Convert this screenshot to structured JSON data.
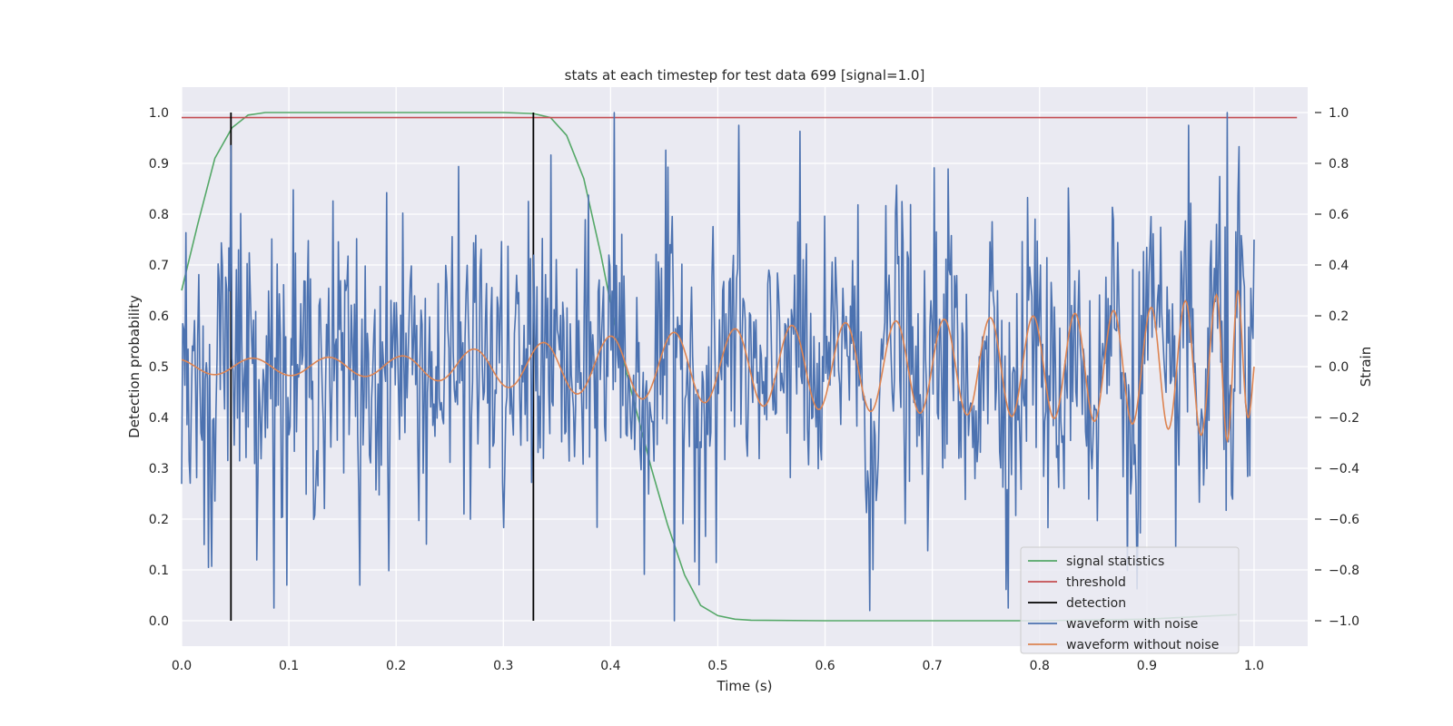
{
  "chart_data": {
    "type": "line",
    "title": "stats at each timestep for test data 699 [signal=1.0]",
    "xlabel": "Time (s)",
    "ylabel": "Detection probability",
    "ylabel_right": "Strain",
    "xlim": [
      0.0,
      1.05
    ],
    "ylim": [
      -0.05,
      1.05
    ],
    "ylim_right": [
      -1.1,
      1.1
    ],
    "xticks": [
      0.0,
      0.1,
      0.2,
      0.3,
      0.4,
      0.5,
      0.6,
      0.7,
      0.8,
      0.9,
      1.0
    ],
    "xtick_labels": [
      "0.0",
      "0.1",
      "0.2",
      "0.3",
      "0.4",
      "0.5",
      "0.6",
      "0.7",
      "0.8",
      "0.9",
      "1.0"
    ],
    "yticks": [
      0.0,
      0.1,
      0.2,
      0.3,
      0.4,
      0.5,
      0.6,
      0.7,
      0.8,
      0.9,
      1.0
    ],
    "ytick_labels": [
      "0.0",
      "0.1",
      "0.2",
      "0.3",
      "0.4",
      "0.5",
      "0.6",
      "0.7",
      "0.8",
      "0.9",
      "1.0"
    ],
    "yticks_right": [
      -1.0,
      -0.8,
      -0.6,
      -0.4,
      -0.2,
      0.0,
      0.2,
      0.4,
      0.6,
      0.8,
      1.0
    ],
    "ytick_labels_right": [
      "−1.0",
      "−0.8",
      "−0.6",
      "−0.4",
      "−0.2",
      "0.0",
      "0.2",
      "0.4",
      "0.6",
      "0.8",
      "1.0"
    ],
    "grid": true,
    "legend_position": "lower-right",
    "colors": {
      "background": "#eaeaf2",
      "grid": "#ffffff",
      "signal_statistics": "#55a868",
      "threshold": "#c44e52",
      "detection": "#000000",
      "waveform_with_noise": "#4c72b0",
      "waveform_without_noise": "#dd8452"
    },
    "series": [
      {
        "name": "signal statistics",
        "axis": "left",
        "x": [
          0.0,
          0.015,
          0.031,
          0.047,
          0.062,
          0.078,
          0.1,
          0.2,
          0.3,
          0.328,
          0.344,
          0.359,
          0.375,
          0.391,
          0.406,
          0.422,
          0.438,
          0.453,
          0.469,
          0.484,
          0.5,
          0.516,
          0.531,
          0.6,
          0.7,
          0.8,
          0.9,
          0.984
        ],
        "y": [
          0.65,
          0.78,
          0.91,
          0.97,
          0.995,
          1.0,
          1.0,
          1.0,
          1.0,
          0.998,
          0.99,
          0.955,
          0.87,
          0.72,
          0.56,
          0.43,
          0.3,
          0.19,
          0.09,
          0.03,
          0.01,
          0.003,
          0.001,
          0.0,
          0.0,
          0.0,
          0.003,
          0.012
        ]
      },
      {
        "name": "threshold",
        "axis": "left",
        "x": [
          0.0,
          1.04
        ],
        "y": [
          0.99,
          0.99
        ]
      },
      {
        "name": "detection",
        "axis": "left",
        "x_positions": [
          0.046,
          0.328
        ],
        "y": [
          0.0,
          1.0
        ]
      },
      {
        "name": "waveform with noise",
        "axis": "right",
        "n_samples": 1000,
        "x_range": [
          0.0,
          1.0
        ],
        "amplitude_sd": 0.28,
        "amplitude_range": [
          -1.0,
          1.0
        ],
        "extremes": [
          [
            0.403,
            1.0
          ],
          [
            0.975,
            1.0
          ],
          [
            0.046,
            0.87
          ],
          [
            0.459,
            -1.0
          ],
          [
            0.642,
            -0.96
          ],
          [
            0.098,
            -0.86
          ],
          [
            0.166,
            -0.86
          ],
          [
            0.025,
            -0.79
          ]
        ]
      },
      {
        "name": "waveform without noise",
        "axis": "right",
        "samples": 1000,
        "x_range": [
          0.0,
          1.0
        ],
        "envelope_points": [
          [
            0.0,
            0.03
          ],
          [
            0.2,
            0.04
          ],
          [
            0.4,
            0.12
          ],
          [
            0.6,
            0.17
          ],
          [
            0.8,
            0.2
          ],
          [
            0.9,
            0.23
          ],
          [
            0.95,
            0.27
          ],
          [
            0.985,
            0.3
          ]
        ],
        "peaks": [
          0.066,
          0.137,
          0.205,
          0.272,
          0.337,
          0.4,
          0.459,
          0.516,
          0.569,
          0.619,
          0.666,
          0.711,
          0.754,
          0.794,
          0.833,
          0.869,
          0.904,
          0.936,
          0.965,
          0.985
        ]
      }
    ]
  }
}
